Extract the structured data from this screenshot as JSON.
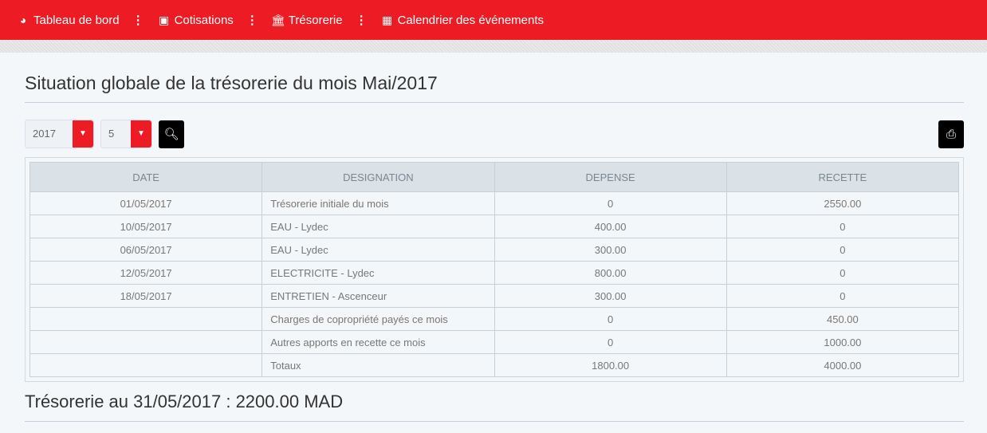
{
  "nav": [
    {
      "label": "Tableau de bord",
      "icon": "dashboard-icon"
    },
    {
      "label": "Cotisations",
      "icon": "money-icon"
    },
    {
      "label": "Trésorerie",
      "icon": "bank-icon"
    },
    {
      "label": "Calendrier des événements",
      "icon": "calendar-icon"
    }
  ],
  "title": "Situation globale de la trésorerie du mois Mai/2017",
  "filters": {
    "year": "2017",
    "month": "5"
  },
  "colors": {
    "accent": "#ed1c24"
  },
  "table": {
    "headers": [
      "DATE",
      "DESIGNATION",
      "DEPENSE",
      "RECETTE"
    ],
    "rows": [
      [
        "01/05/2017",
        "Trésorerie initiale du mois",
        "0",
        "2550.00"
      ],
      [
        "10/05/2017",
        "EAU - Lydec",
        "400.00",
        "0"
      ],
      [
        "06/05/2017",
        "EAU - Lydec",
        "300.00",
        "0"
      ],
      [
        "12/05/2017",
        "ELECTRICITE - Lydec",
        "800.00",
        "0"
      ],
      [
        "18/05/2017",
        "ENTRETIEN - Ascenceur",
        "300.00",
        "0"
      ],
      [
        "",
        "Charges de copropriété payés ce mois",
        "0",
        "450.00"
      ],
      [
        "",
        "Autres apports en recette ce mois",
        "0",
        "1000.00"
      ],
      [
        "",
        "Totaux",
        "1800.00",
        "4000.00"
      ]
    ]
  },
  "footer": "Trésorerie au 31/05/2017 : 2200.00 MAD"
}
